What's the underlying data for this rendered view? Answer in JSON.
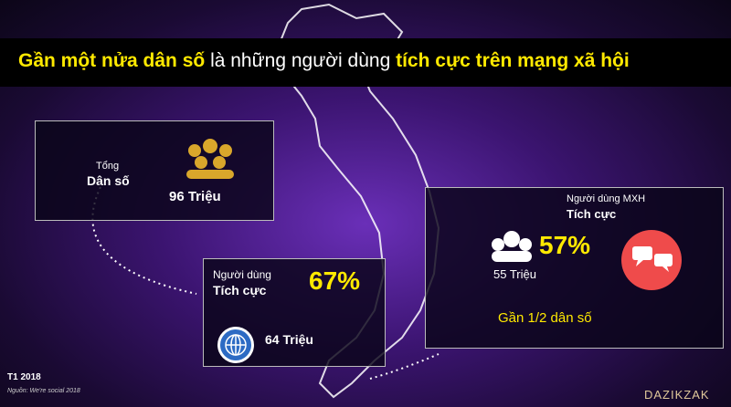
{
  "title": {
    "part1": "Gần một nửa dân số",
    "part2": " là những người dùng ",
    "part3": "tích cực trên mạng xã hội"
  },
  "total": {
    "label1": "Tổng",
    "label2": "Dân số",
    "amount": "96 Triệu"
  },
  "active": {
    "label1": "Người dùng",
    "label2": "Tích cực",
    "percent": "67%",
    "amount": "64 Triệu"
  },
  "social": {
    "label1": "Người dùng MXH",
    "label2": "Tích cực",
    "percent": "57%",
    "amount": "55 Triệu",
    "note": "Gần 1/2 dân số"
  },
  "footer": {
    "date": "T1 2018",
    "source": "Nguồn: We're social 2018"
  },
  "logo": "DAZIKZAK"
}
